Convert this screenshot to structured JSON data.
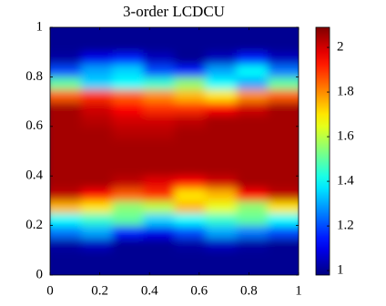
{
  "chart_data": {
    "type": "heatmap",
    "title": "3-order LCDCU",
    "xlim": [
      0,
      1
    ],
    "xticks": [
      0,
      0.2,
      0.4,
      0.6,
      0.8,
      1
    ],
    "ylim": [
      0,
      1
    ],
    "yticks": [
      0,
      0.2,
      0.4,
      0.6,
      0.8,
      1
    ],
    "colormap": "jet",
    "clim": [
      0.98,
      2.09
    ],
    "cticks": [
      1,
      1.2,
      1.4,
      1.6,
      1.8,
      2
    ],
    "z": [
      [
        1,
        1,
        1,
        1,
        1,
        1,
        1,
        1
      ],
      [
        1,
        1,
        1,
        1,
        1,
        1,
        1,
        1
      ],
      [
        1.02,
        1.05,
        1,
        1,
        1.02,
        1.05,
        1.02,
        1
      ],
      [
        1.25,
        1.3,
        1.15,
        1.1,
        1.2,
        1.3,
        1.25,
        1.2
      ],
      [
        1.4,
        1.45,
        1.5,
        1.35,
        1.4,
        1.45,
        1.5,
        1.4
      ],
      [
        1.75,
        1.7,
        1.55,
        1.6,
        1.75,
        1.65,
        1.55,
        1.7
      ],
      [
        2.02,
        1.95,
        1.85,
        1.9,
        1.7,
        1.75,
        1.95,
        2.02
      ],
      [
        2.05,
        2.05,
        2.02,
        1.98,
        1.95,
        2,
        2.05,
        2.05
      ],
      [
        2.05,
        2.05,
        2.05,
        2.05,
        2.05,
        2.05,
        2.05,
        2.05
      ],
      [
        2.05,
        2.05,
        2.05,
        2.05,
        2.05,
        2.05,
        2.05,
        2.05
      ],
      [
        2.05,
        2.05,
        2.05,
        2.05,
        2.05,
        2.05,
        2.05,
        2.05
      ],
      [
        2.05,
        2.05,
        2.03,
        2.03,
        2.05,
        2.05,
        2.05,
        2.05
      ],
      [
        2.05,
        2.03,
        2,
        2,
        2.02,
        2.05,
        2.05,
        2.05
      ],
      [
        2.05,
        2,
        1.95,
        1.9,
        1.9,
        1.95,
        2,
        2.05
      ],
      [
        1.85,
        1.9,
        1.85,
        1.8,
        1.75,
        1.7,
        1.8,
        1.85
      ],
      [
        1.5,
        1.35,
        1.4,
        1.45,
        1.55,
        1.4,
        1.3,
        1.5
      ],
      [
        1.2,
        1.3,
        1.35,
        1.2,
        1.15,
        1.3,
        1.4,
        1.25
      ],
      [
        1.02,
        1.1,
        1.15,
        1.05,
        1,
        1.05,
        1.15,
        1.05
      ],
      [
        1,
        1,
        1,
        1,
        1,
        1,
        1,
        1
      ],
      [
        1,
        1,
        1,
        1,
        1,
        1,
        1,
        1
      ]
    ]
  }
}
